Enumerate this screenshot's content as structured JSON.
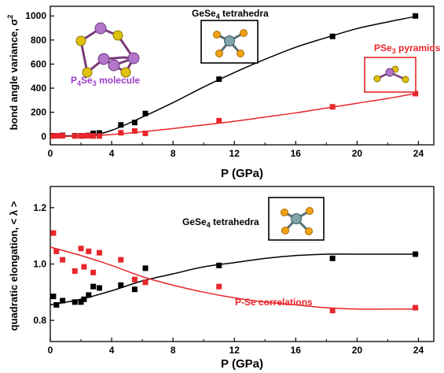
{
  "colors": {
    "black_series": "#000000",
    "red_series": "#e8262b",
    "p4se3_label": "#9b3cc8",
    "frame": "#000000"
  },
  "chart_data": [
    {
      "type": "scatter",
      "x_label_base": "P (GPa)",
      "y_label_base": "bond angle variance, σ",
      "y_label_sup": "2",
      "xlim": [
        0,
        25
      ],
      "ylim": [
        -70,
        1080
      ],
      "x_ticks": [
        0,
        4,
        8,
        12,
        16,
        20,
        24
      ],
      "y_ticks": [
        0,
        200,
        400,
        600,
        800,
        1000
      ],
      "grid": false,
      "series": [
        {
          "x": [
            0.2,
            0.5,
            0.8,
            1.6,
            2.0,
            2.2,
            2.5,
            2.8,
            3.2,
            4.6,
            5.5,
            6.2,
            11.0,
            18.4,
            23.8
          ],
          "y": [
            5,
            5,
            8,
            5,
            5,
            5,
            8,
            25,
            28,
            95,
            115,
            190,
            475,
            830,
            1000
          ],
          "fit": [
            [
              0,
              5
            ],
            [
              2.5,
              8
            ],
            [
              4,
              50
            ],
            [
              6,
              160
            ],
            [
              8,
              280
            ],
            [
              10,
              410
            ],
            [
              12,
              530
            ],
            [
              14,
              640
            ],
            [
              16,
              740
            ],
            [
              18,
              820
            ],
            [
              20,
              895
            ],
            [
              22,
              950
            ],
            [
              24,
              1000
            ]
          ]
        },
        {
          "x": [
            0.2,
            0.5,
            0.8,
            1.6,
            2.0,
            2.2,
            2.5,
            2.8,
            3.2,
            4.6,
            5.5,
            6.2,
            11.0,
            18.4,
            23.8
          ],
          "y": [
            3,
            5,
            5,
            3,
            3,
            5,
            5,
            3,
            3,
            30,
            45,
            25,
            130,
            245,
            355
          ],
          "fit": [
            [
              0,
              0
            ],
            [
              2,
              3
            ],
            [
              4,
              15
            ],
            [
              6,
              38
            ],
            [
              8,
              65
            ],
            [
              10,
              95
            ],
            [
              12,
              125
            ],
            [
              14,
              160
            ],
            [
              16,
              195
            ],
            [
              18,
              235
            ],
            [
              20,
              275
            ],
            [
              22,
              315
            ],
            [
              24,
              360
            ]
          ]
        }
      ],
      "annotations": {
        "gese4": {
          "base": "GeSe",
          "sub": "4",
          "rest": " tetrahedra"
        },
        "pse3": {
          "base": "PSe",
          "sub": "3",
          "rest": " pyramids"
        },
        "p4se3": {
          "p": "P",
          "sub1": "4",
          "se": "Se",
          "sub2": "3",
          "rest": " molecule"
        }
      }
    },
    {
      "type": "scatter",
      "x_label": "P (GPa)",
      "y_label": "quadratic elongation, < λ >",
      "xlim": [
        0,
        25
      ],
      "ylim": [
        0.725,
        1.275
      ],
      "x_ticks": [
        0,
        4,
        8,
        12,
        16,
        20,
        24
      ],
      "y_ticks": [
        "0.8",
        "1.0",
        "1.2"
      ],
      "grid": false,
      "series": [
        {
          "x": [
            0.2,
            0.4,
            0.8,
            1.6,
            2.0,
            2.2,
            2.5,
            2.8,
            3.2,
            4.6,
            5.5,
            6.2,
            11.0,
            18.4,
            23.8
          ],
          "y": [
            0.885,
            0.855,
            0.87,
            0.865,
            0.865,
            0.875,
            0.89,
            0.92,
            0.915,
            0.925,
            0.91,
            0.985,
            0.995,
            1.02,
            1.035
          ],
          "fit": [
            [
              0,
              0.855
            ],
            [
              2,
              0.875
            ],
            [
              4,
              0.905
            ],
            [
              6,
              0.94
            ],
            [
              8,
              0.965
            ],
            [
              10,
              0.99
            ],
            [
              12,
              1.005
            ],
            [
              14,
              1.02
            ],
            [
              16,
              1.03
            ],
            [
              18,
              1.035
            ],
            [
              20,
              1.035
            ],
            [
              22,
              1.035
            ],
            [
              24,
              1.035
            ]
          ]
        },
        {
          "x": [
            0.2,
            0.4,
            0.8,
            1.6,
            2.0,
            2.2,
            2.5,
            2.8,
            3.2,
            4.6,
            5.5,
            6.2,
            11.0,
            18.4,
            23.8
          ],
          "y": [
            1.11,
            1.045,
            1.015,
            0.975,
            1.055,
            0.99,
            1.045,
            0.97,
            1.04,
            1.015,
            0.945,
            0.935,
            0.92,
            0.835,
            0.845
          ],
          "fit": [
            [
              0,
              1.06
            ],
            [
              2,
              1.03
            ],
            [
              4,
              0.995
            ],
            [
              6,
              0.955
            ],
            [
              8,
              0.925
            ],
            [
              10,
              0.9
            ],
            [
              12,
              0.88
            ],
            [
              14,
              0.865
            ],
            [
              16,
              0.855
            ],
            [
              18,
              0.845
            ],
            [
              20,
              0.84
            ],
            [
              22,
              0.84
            ],
            [
              24,
              0.84
            ]
          ]
        }
      ],
      "annotations": {
        "gese4": {
          "base": "GeSe",
          "sub": "4",
          "rest": " tetrahedra"
        },
        "pse": "P-Se correlations"
      }
    }
  ]
}
